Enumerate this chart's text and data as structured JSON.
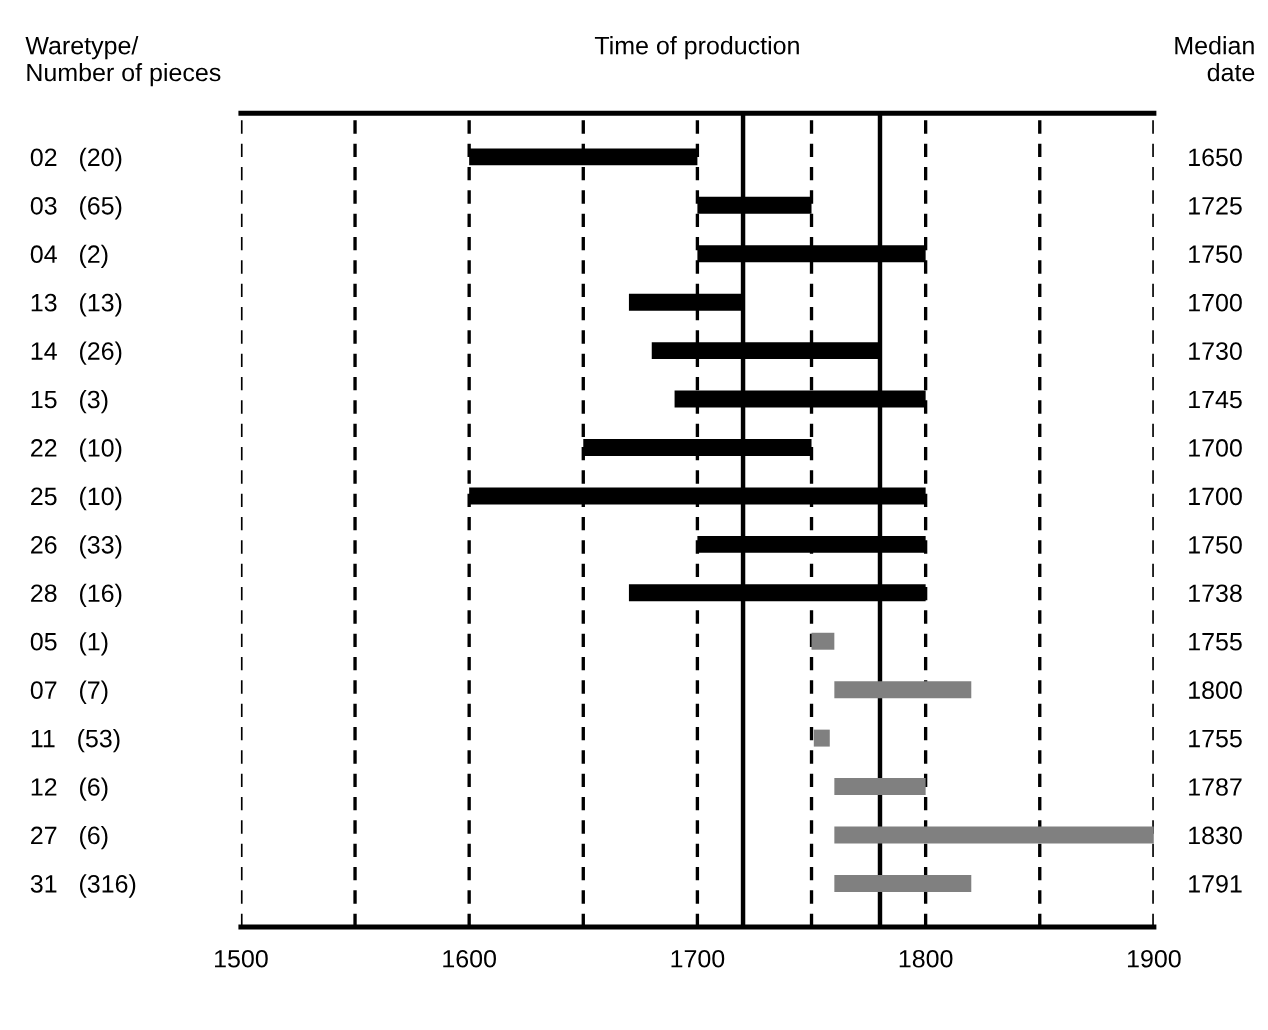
{
  "chart_data": {
    "type": "bar",
    "orientation": "horizontal",
    "title": "Time of production",
    "ylabel": "Waretype/\nNumber of pieces",
    "y2label": "Median\ndate",
    "categories": [
      "02   (20)",
      "03   (65)",
      "04   (2)",
      "13   (13)",
      "14   (26)",
      "15   (3)",
      "22   (10)",
      "25   (10)",
      "26   (33)",
      "28   (16)",
      "05   (1)",
      "07   (7)",
      "11   (53)",
      "12   (6)",
      "27   (6)",
      "31   (316)"
    ],
    "y2_categories": [
      "1650",
      "1725",
      "1750",
      "1700",
      "1730",
      "1745",
      "1700",
      "1700",
      "1750",
      "1738",
      "1755",
      "1800",
      "1755",
      "1787",
      "1830",
      "1791"
    ],
    "base": [
      1600,
      1700,
      1700,
      1670,
      1680,
      1690,
      1650,
      1600,
      1700,
      1670,
      1750,
      1760,
      1751,
      1760,
      1760,
      1760
    ],
    "values": [
      100,
      50,
      100,
      50,
      100,
      110,
      100,
      200,
      100,
      130,
      10,
      60,
      7,
      40,
      140,
      60
    ],
    "colors": [
      "#000000",
      "#000000",
      "#000000",
      "#000000",
      "#000000",
      "#000000",
      "#000000",
      "#000000",
      "#000000",
      "#000000",
      "#808080",
      "#808080",
      "#808080",
      "#808080",
      "#808080",
      "#808080"
    ],
    "xlim": [
      1500,
      1900
    ],
    "xticks": [
      1500,
      {
        "value": 1550,
        "label": null
      },
      1600,
      {
        "value": 1650,
        "label": null
      },
      1700,
      {
        "value": 1750,
        "label": null
      },
      1800,
      {
        "value": 1850,
        "label": null
      },
      1900
    ],
    "grid": "x",
    "ref_lines": [
      {
        "axis": "x",
        "value": 1720,
        "color": "#000000",
        "line_style": "solid"
      },
      {
        "axis": "x",
        "value": 1780,
        "color": "#000000",
        "line_style": "solid"
      }
    ]
  }
}
